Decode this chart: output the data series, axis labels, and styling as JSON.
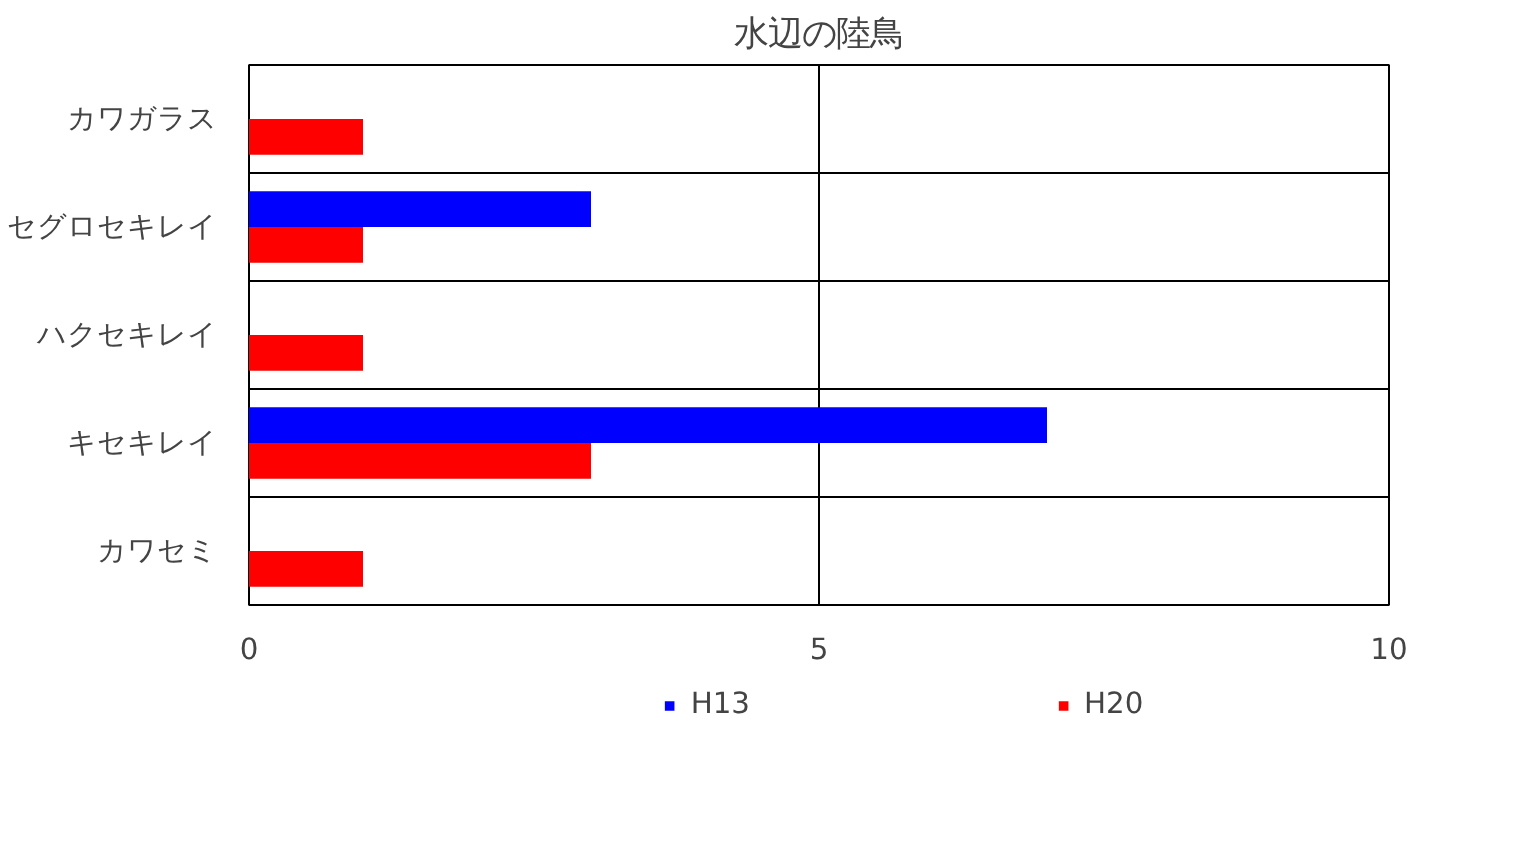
{
  "chart_data": {
    "type": "bar",
    "orientation": "horizontal",
    "title": "水辺の陸鳥",
    "categories": [
      "カワガラス",
      "セグロセキレイ",
      "ハクセキレイ",
      "キセキレイ",
      "カワセミ"
    ],
    "series": [
      {
        "name": "H13",
        "color": "#0000ff",
        "values": [
          0,
          3,
          0,
          7,
          0
        ]
      },
      {
        "name": "H20",
        "color": "#ff0000",
        "values": [
          1,
          1,
          1,
          3,
          1
        ]
      }
    ],
    "xlim": [
      0,
      10
    ],
    "xticks": [
      0,
      5,
      10
    ],
    "grid": true,
    "legend": "bottom"
  }
}
